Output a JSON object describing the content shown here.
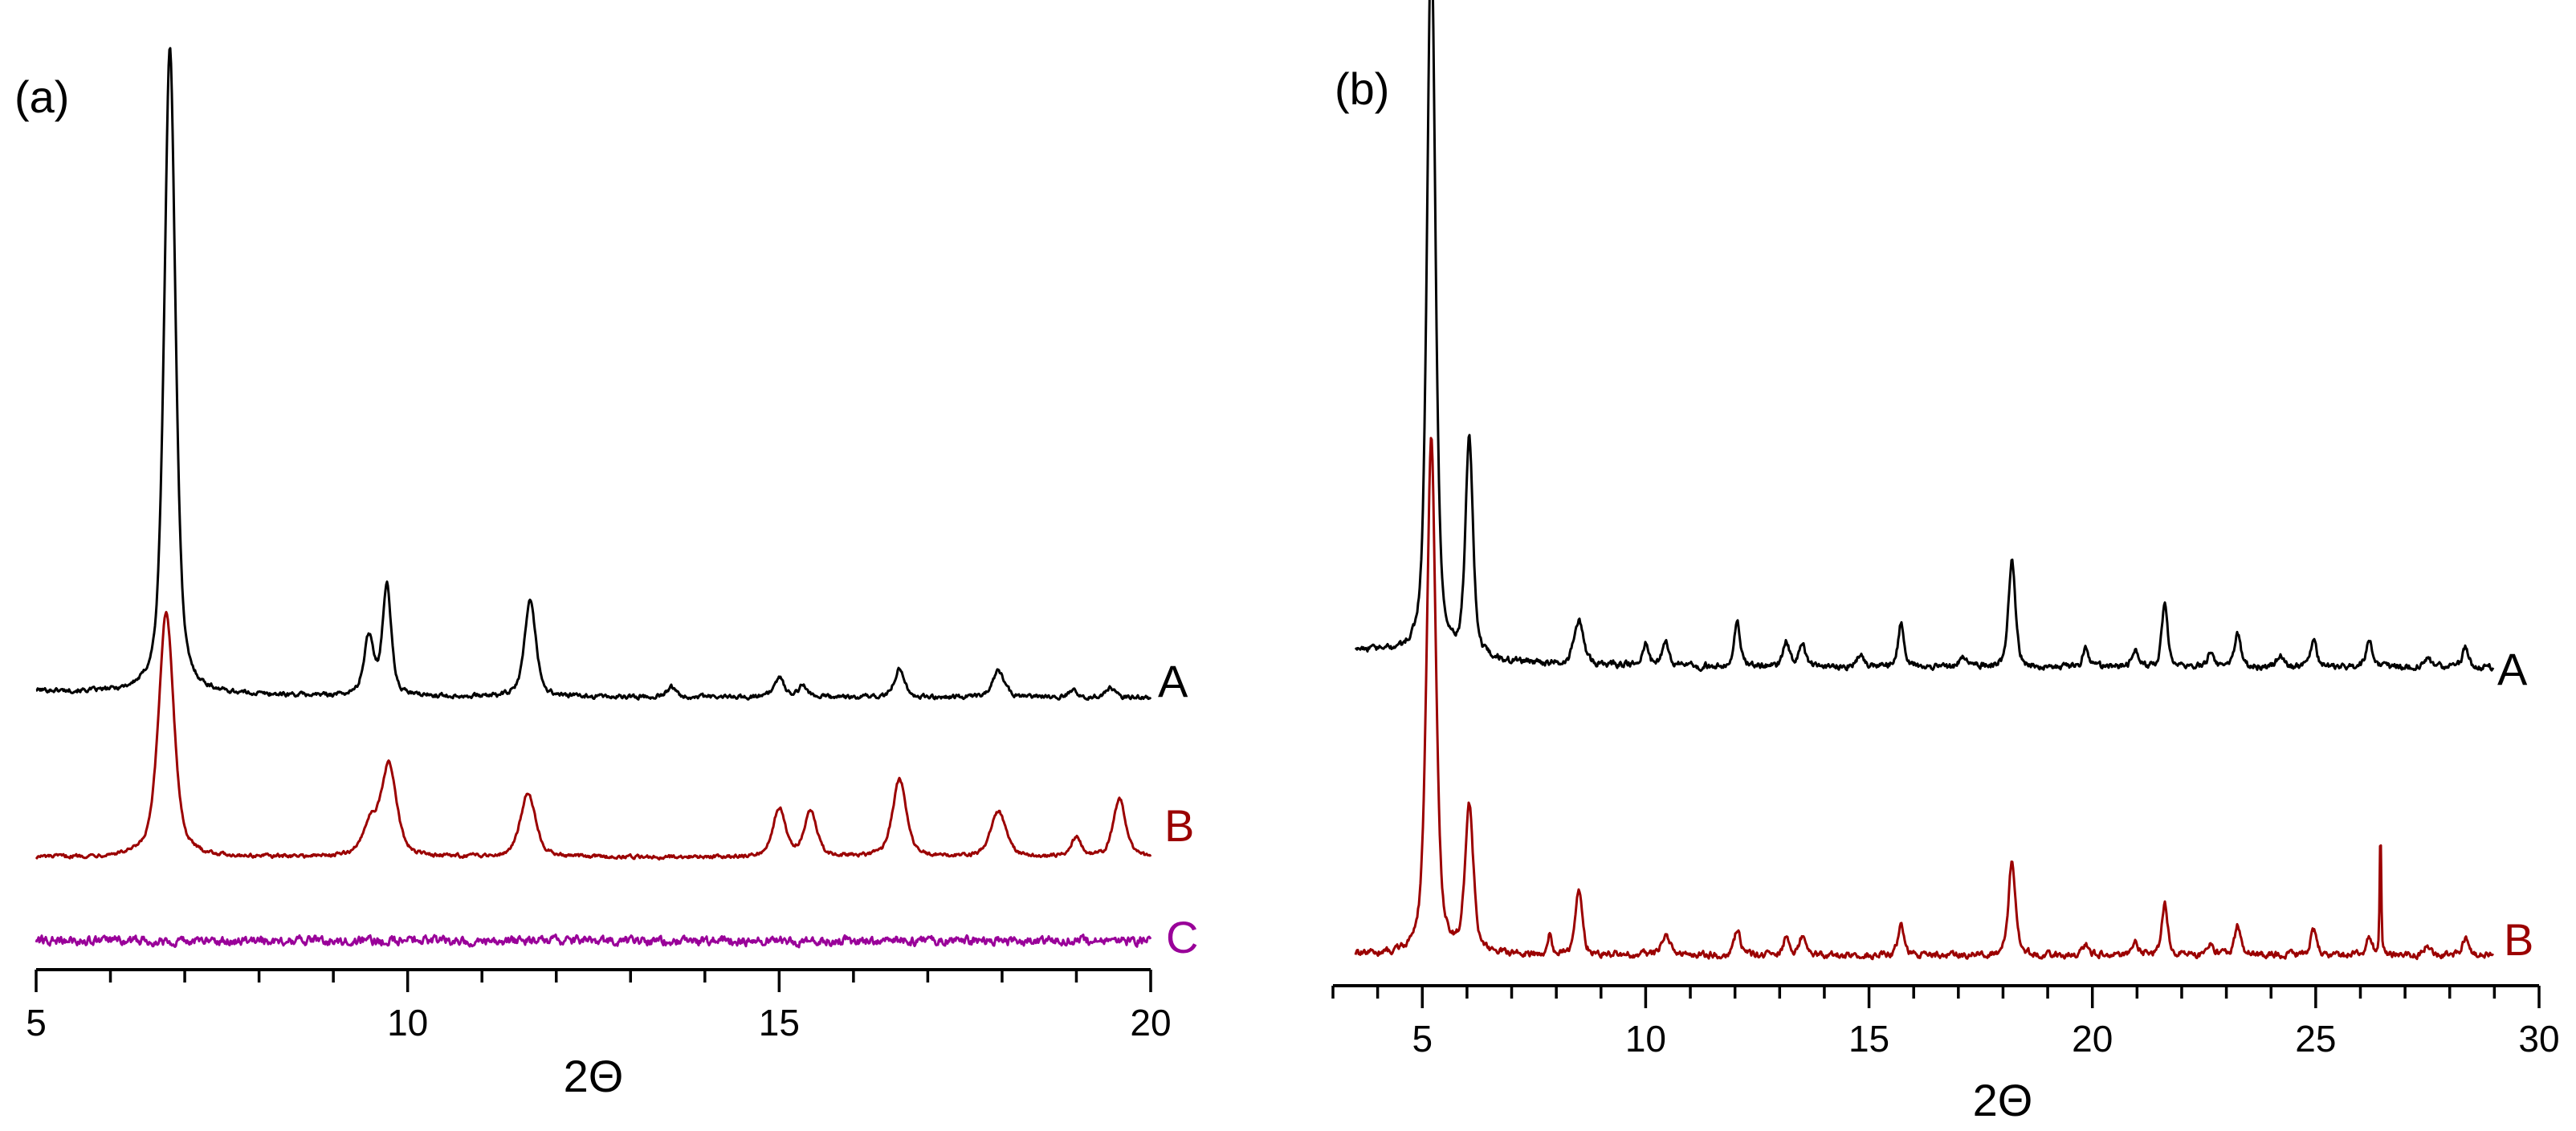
{
  "chart_data": [
    {
      "type": "line",
      "panel_label": "(a)",
      "xlabel": "2Θ",
      "ylabel": "",
      "xlim": [
        5,
        20
      ],
      "xticks": [
        5,
        10,
        15,
        20
      ],
      "grid": false,
      "y_axis_shown": false,
      "series": [
        {
          "name": "A",
          "color": "#000000",
          "baseline": 0.03,
          "noise": 0.006,
          "peaks": [
            {
              "x": 6.8,
              "h": 1.0,
              "w": 0.09
            },
            {
              "x": 9.48,
              "h": 0.09,
              "w": 0.08
            },
            {
              "x": 9.72,
              "h": 0.17,
              "w": 0.07
            },
            {
              "x": 11.65,
              "h": 0.15,
              "w": 0.09
            },
            {
              "x": 13.55,
              "h": 0.015,
              "w": 0.08
            },
            {
              "x": 15.0,
              "h": 0.03,
              "w": 0.08
            },
            {
              "x": 15.32,
              "h": 0.018,
              "w": 0.07
            },
            {
              "x": 16.62,
              "h": 0.045,
              "w": 0.08
            },
            {
              "x": 17.95,
              "h": 0.04,
              "w": 0.1
            },
            {
              "x": 18.95,
              "h": 0.012,
              "w": 0.07
            },
            {
              "x": 19.45,
              "h": 0.015,
              "w": 0.07
            }
          ]
        },
        {
          "name": "B",
          "color": "#9b0000",
          "baseline": 0.0,
          "noise": 0.005,
          "peaks": [
            {
              "x": 6.75,
              "h": 0.38,
              "w": 0.12
            },
            {
              "x": 9.5,
              "h": 0.05,
              "w": 0.12
            },
            {
              "x": 9.75,
              "h": 0.14,
              "w": 0.12
            },
            {
              "x": 11.62,
              "h": 0.1,
              "w": 0.12
            },
            {
              "x": 15.0,
              "h": 0.075,
              "w": 0.1
            },
            {
              "x": 15.42,
              "h": 0.07,
              "w": 0.1
            },
            {
              "x": 16.62,
              "h": 0.12,
              "w": 0.11
            },
            {
              "x": 17.95,
              "h": 0.07,
              "w": 0.12
            },
            {
              "x": 19.0,
              "h": 0.03,
              "w": 0.08
            },
            {
              "x": 19.58,
              "h": 0.09,
              "w": 0.1
            }
          ]
        },
        {
          "name": "C",
          "color": "#990099",
          "baseline": 0.0,
          "noise": 0.012,
          "peaks": []
        }
      ]
    },
    {
      "type": "line",
      "panel_label": "(b)",
      "xlabel": "2Θ",
      "ylabel": "",
      "xlim": [
        3,
        30
      ],
      "xticks": [
        5,
        10,
        15,
        20,
        25,
        30
      ],
      "grid": false,
      "y_axis_shown": false,
      "series": [
        {
          "name": "A",
          "color": "#000000",
          "baseline": 0.09,
          "noise": 0.008,
          "peaks": [
            {
              "x": 5.2,
              "h": 1.0,
              "w": 0.11
            },
            {
              "x": 6.05,
              "h": 0.3,
              "w": 0.1
            },
            {
              "x": 8.5,
              "h": 0.06,
              "w": 0.12
            },
            {
              "x": 10.0,
              "h": 0.03,
              "w": 0.08
            },
            {
              "x": 10.45,
              "h": 0.03,
              "w": 0.1
            },
            {
              "x": 12.05,
              "h": 0.06,
              "w": 0.08
            },
            {
              "x": 13.15,
              "h": 0.035,
              "w": 0.08
            },
            {
              "x": 13.5,
              "h": 0.035,
              "w": 0.08
            },
            {
              "x": 14.8,
              "h": 0.015,
              "w": 0.1
            },
            {
              "x": 15.72,
              "h": 0.06,
              "w": 0.08
            },
            {
              "x": 17.1,
              "h": 0.015,
              "w": 0.1
            },
            {
              "x": 18.2,
              "h": 0.15,
              "w": 0.09
            },
            {
              "x": 19.85,
              "h": 0.025,
              "w": 0.08
            },
            {
              "x": 20.95,
              "h": 0.025,
              "w": 0.08
            },
            {
              "x": 21.62,
              "h": 0.085,
              "w": 0.08
            },
            {
              "x": 22.65,
              "h": 0.02,
              "w": 0.08
            },
            {
              "x": 23.25,
              "h": 0.045,
              "w": 0.08
            },
            {
              "x": 24.2,
              "h": 0.018,
              "w": 0.08
            },
            {
              "x": 24.95,
              "h": 0.038,
              "w": 0.08
            },
            {
              "x": 26.2,
              "h": 0.035,
              "w": 0.08
            },
            {
              "x": 27.5,
              "h": 0.015,
              "w": 0.08
            },
            {
              "x": 28.35,
              "h": 0.028,
              "w": 0.08
            }
          ]
        },
        {
          "name": "B",
          "color": "#9b0000",
          "baseline": 0.0,
          "noise": 0.008,
          "peaks": [
            {
              "x": 5.2,
              "h": 0.71,
              "w": 0.12
            },
            {
              "x": 6.05,
              "h": 0.2,
              "w": 0.11
            },
            {
              "x": 7.85,
              "h": 0.03,
              "w": 0.05
            },
            {
              "x": 8.5,
              "h": 0.09,
              "w": 0.09
            },
            {
              "x": 10.45,
              "h": 0.03,
              "w": 0.1
            },
            {
              "x": 12.05,
              "h": 0.035,
              "w": 0.08
            },
            {
              "x": 13.15,
              "h": 0.025,
              "w": 0.08
            },
            {
              "x": 13.5,
              "h": 0.025,
              "w": 0.08
            },
            {
              "x": 15.72,
              "h": 0.045,
              "w": 0.08
            },
            {
              "x": 18.2,
              "h": 0.13,
              "w": 0.09
            },
            {
              "x": 19.85,
              "h": 0.015,
              "w": 0.08
            },
            {
              "x": 20.95,
              "h": 0.02,
              "w": 0.08
            },
            {
              "x": 21.62,
              "h": 0.07,
              "w": 0.08
            },
            {
              "x": 22.65,
              "h": 0.015,
              "w": 0.08
            },
            {
              "x": 23.25,
              "h": 0.04,
              "w": 0.08
            },
            {
              "x": 24.95,
              "h": 0.035,
              "w": 0.08
            },
            {
              "x": 26.2,
              "h": 0.025,
              "w": 0.08
            },
            {
              "x": 26.45,
              "h": 0.17,
              "w": 0.02
            },
            {
              "x": 27.5,
              "h": 0.015,
              "w": 0.08
            },
            {
              "x": 28.35,
              "h": 0.025,
              "w": 0.08
            }
          ]
        }
      ]
    }
  ]
}
